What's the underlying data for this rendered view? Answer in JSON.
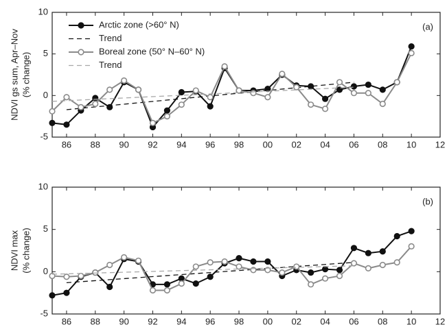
{
  "chart_data": [
    {
      "type": "line",
      "ylabel": [
        "NDVI gs sum, Apr–Nov",
        "(% change)"
      ],
      "annotation": "(a)",
      "xlim": [
        1985,
        2012
      ],
      "ylim": [
        -5,
        10
      ],
      "yticks": [
        -5,
        0,
        5,
        10
      ],
      "xticks": [
        {
          "value": 1986,
          "label": "86"
        },
        {
          "value": 1988,
          "label": "88"
        },
        {
          "value": 1990,
          "label": "90"
        },
        {
          "value": 1992,
          "label": "92"
        },
        {
          "value": 1994,
          "label": "94"
        },
        {
          "value": 1996,
          "label": "96"
        },
        {
          "value": 1998,
          "label": "98"
        },
        {
          "value": 2000,
          "label": "00"
        },
        {
          "value": 2002,
          "label": "02"
        },
        {
          "value": 2004,
          "label": "04"
        },
        {
          "value": 2006,
          "label": "06"
        },
        {
          "value": 2008,
          "label": "08"
        },
        {
          "value": 2010,
          "label": "10"
        },
        {
          "value": 2012,
          "label": "12"
        }
      ],
      "legend": "upper left",
      "series": [
        {
          "name": "Arctic zone (>60° N)",
          "color": "#111111",
          "marker": "filled",
          "x": [
            1985,
            1986,
            1987,
            1988,
            1989,
            1990,
            1991,
            1992,
            1993,
            1994,
            1995,
            1996,
            1997,
            1998,
            1999,
            2000,
            2001,
            2002,
            2003,
            2004,
            2005,
            2006,
            2007,
            2008,
            2009,
            2010
          ],
          "values": [
            -3.3,
            -3.5,
            -1.8,
            -0.3,
            -1.4,
            1.6,
            0.7,
            -3.8,
            -1.8,
            0.4,
            0.5,
            -1.3,
            3.3,
            0.6,
            0.6,
            0.8,
            2.5,
            1.2,
            1.1,
            -0.4,
            0.7,
            1.1,
            1.3,
            0.7,
            1.6,
            5.9
          ]
        },
        {
          "name": "Trend",
          "color": "#111111",
          "dashed": true,
          "x": [
            1986,
            2006
          ],
          "values": [
            -1.7,
            1.6
          ]
        },
        {
          "name": "Boreal zone (50° N–60° N)",
          "color": "#8a8a8a",
          "marker": "open",
          "x": [
            1985,
            1986,
            1987,
            1988,
            1989,
            1990,
            1991,
            1992,
            1993,
            1994,
            1995,
            1996,
            1997,
            1998,
            1999,
            2000,
            2001,
            2002,
            2003,
            2004,
            2005,
            2006,
            2007,
            2008,
            2009,
            2010
          ],
          "values": [
            -1.9,
            -0.2,
            -1.4,
            -1.0,
            0.7,
            1.8,
            0.7,
            -3.3,
            -2.5,
            -1.1,
            0.6,
            -0.2,
            3.5,
            0.6,
            0.3,
            -0.2,
            2.6,
            1.0,
            -1.1,
            -1.6,
            1.6,
            0.3,
            0.3,
            -1.0,
            1.6,
            5.1
          ]
        },
        {
          "name": "Trend",
          "color": "#a8a8a8",
          "dashed": true,
          "x": [
            1985,
            2006
          ],
          "values": [
            -0.7,
            1.0
          ]
        }
      ]
    },
    {
      "type": "line",
      "ylabel": [
        "NDVI max",
        "(% change)"
      ],
      "annotation": "(b)",
      "xlim": [
        1985,
        2012
      ],
      "ylim": [
        -5,
        10
      ],
      "yticks": [
        -5,
        0,
        5,
        10
      ],
      "xticks": [
        {
          "value": 1986,
          "label": "86"
        },
        {
          "value": 1988,
          "label": "88"
        },
        {
          "value": 1990,
          "label": "90"
        },
        {
          "value": 1992,
          "label": "92"
        },
        {
          "value": 1994,
          "label": "94"
        },
        {
          "value": 1996,
          "label": "96"
        },
        {
          "value": 1998,
          "label": "98"
        },
        {
          "value": 2000,
          "label": "00"
        },
        {
          "value": 2002,
          "label": "02"
        },
        {
          "value": 2004,
          "label": "04"
        },
        {
          "value": 2006,
          "label": "06"
        },
        {
          "value": 2008,
          "label": "08"
        },
        {
          "value": 2010,
          "label": "10"
        },
        {
          "value": 2012,
          "label": "12"
        }
      ],
      "series": [
        {
          "color": "#111111",
          "marker": "filled",
          "x": [
            1985,
            1986,
            1987,
            1988,
            1989,
            1990,
            1991,
            1992,
            1993,
            1994,
            1995,
            1996,
            1997,
            1998,
            1999,
            2000,
            2001,
            2002,
            2003,
            2004,
            2005,
            2006,
            2007,
            2008,
            2009,
            2010
          ],
          "values": [
            -2.8,
            -2.5,
            -0.6,
            -0.1,
            -1.8,
            1.5,
            1.2,
            -1.5,
            -1.5,
            -0.8,
            -1.4,
            -0.6,
            1.0,
            1.6,
            1.2,
            1.2,
            -0.5,
            0.2,
            -0.1,
            0.3,
            0.2,
            2.8,
            2.2,
            2.4,
            4.2,
            4.8
          ]
        },
        {
          "color": "#111111",
          "dashed": true,
          "x": [
            1986,
            2006
          ],
          "values": [
            -1.3,
            1.1
          ]
        },
        {
          "color": "#8a8a8a",
          "marker": "open",
          "x": [
            1985,
            1986,
            1987,
            1988,
            1989,
            1990,
            1991,
            1992,
            1993,
            1994,
            1995,
            1996,
            1997,
            1998,
            1999,
            2000,
            2001,
            2002,
            2003,
            2004,
            2005,
            2006,
            2007,
            2008,
            2009,
            2010
          ],
          "values": [
            -0.5,
            -0.6,
            -0.5,
            -0.1,
            0.8,
            1.7,
            1.3,
            -2.2,
            -2.2,
            -1.4,
            0.6,
            1.1,
            1.2,
            0.6,
            0.2,
            0.2,
            -0.1,
            0.6,
            -1.5,
            -0.8,
            -0.5,
            1.0,
            0.4,
            0.8,
            1.1,
            3.0
          ]
        },
        {
          "color": "#a8a8a8",
          "dashed": true,
          "x": [
            1985,
            2006
          ],
          "values": [
            -0.3,
            0.7
          ]
        }
      ]
    }
  ]
}
